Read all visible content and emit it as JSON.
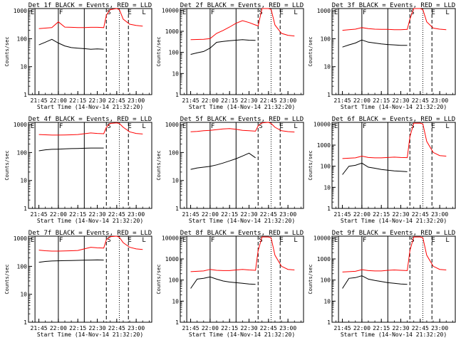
{
  "figure": {
    "x_tick_labels": [
      "21:45",
      "22:00",
      "22:15",
      "22:30",
      "22:45",
      "23:00"
    ],
    "xlabel": "Start Time (14-Nov-14 21:32:20)",
    "ylabel": "Counts/sec",
    "y_tick_labels": [
      "1",
      "10",
      "100",
      "1000",
      "10000"
    ],
    "marker_labels": [
      "E",
      "F",
      "S",
      "E",
      "L"
    ],
    "colors": {
      "events": "#000000",
      "lld": "#ff0000",
      "axes": "#000000",
      "background": "#ffffff"
    }
  },
  "chart_data": [
    {
      "type": "line",
      "title": "Det 1f BLACK = Events, RED = LLD",
      "xlabel": "Start Time (14-Nov-14 21:32:20)",
      "ylabel": "Counts/sec",
      "y_scale": "log",
      "ylim": [
        1,
        1200
      ],
      "x": [
        "21:45",
        "21:50",
        "21:55",
        "22:00",
        "22:05",
        "22:10",
        "22:15",
        "22:20",
        "22:25",
        "22:30",
        "22:35",
        "22:37",
        "22:40",
        "22:45",
        "22:47",
        "22:50",
        "22:55",
        "23:00",
        "23:05"
      ],
      "series": [
        {
          "name": "BLACK = Events",
          "color": "#000000",
          "values": [
            60,
            75,
            95,
            70,
            55,
            48,
            46,
            44,
            42,
            43,
            42,
            null,
            null,
            null,
            null,
            null,
            null,
            null,
            null
          ]
        },
        {
          "name": "RED = LLD",
          "color": "#ff0000",
          "values": [
            230,
            240,
            250,
            400,
            260,
            255,
            250,
            250,
            255,
            255,
            250,
            700,
            1100,
            1200,
            1100,
            500,
            330,
            300,
            280
          ]
        }
      ]
    },
    {
      "type": "line",
      "title": "Det 2f BLACK = Events, RED = LLD",
      "xlabel": "Start Time (14-Nov-14 21:32:20)",
      "ylabel": "Counts/sec",
      "y_scale": "log",
      "ylim": [
        1,
        12000
      ],
      "x": [
        "21:45",
        "21:50",
        "21:55",
        "22:00",
        "22:05",
        "22:10",
        "22:15",
        "22:20",
        "22:25",
        "22:30",
        "22:35",
        "22:37",
        "22:40",
        "22:45",
        "22:47",
        "22:50",
        "22:55",
        "23:00",
        "23:05"
      ],
      "series": [
        {
          "name": "BLACK = Events",
          "color": "#000000",
          "values": [
            80,
            95,
            110,
            160,
            300,
            330,
            360,
            380,
            400,
            380,
            370,
            null,
            null,
            null,
            null,
            null,
            null,
            null,
            null
          ]
        },
        {
          "name": "RED = LLD",
          "color": "#ff0000",
          "values": [
            400,
            410,
            420,
            450,
            800,
            1100,
            1600,
            2400,
            3200,
            2600,
            2000,
            1800,
            12000,
            12000,
            11000,
            2000,
            800,
            650,
            600
          ]
        }
      ]
    },
    {
      "type": "line",
      "title": "Det 3f BLACK = Events, RED = LLD",
      "xlabel": "Start Time (14-Nov-14 21:32:20)",
      "ylabel": "Counts/sec",
      "y_scale": "log",
      "ylim": [
        1,
        1200
      ],
      "x": [
        "21:45",
        "21:50",
        "21:55",
        "22:00",
        "22:05",
        "22:10",
        "22:15",
        "22:20",
        "22:25",
        "22:30",
        "22:35",
        "22:37",
        "22:40",
        "22:45",
        "22:47",
        "22:50",
        "22:55",
        "23:00",
        "23:05"
      ],
      "series": [
        {
          "name": "BLACK = Events",
          "color": "#000000",
          "values": [
            50,
            60,
            70,
            90,
            75,
            70,
            65,
            62,
            60,
            58,
            58,
            null,
            null,
            null,
            null,
            null,
            null,
            null,
            null
          ]
        },
        {
          "name": "RED = LLD",
          "color": "#ff0000",
          "values": [
            200,
            210,
            220,
            250,
            230,
            220,
            215,
            215,
            210,
            210,
            215,
            500,
            1200,
            1200,
            1100,
            400,
            240,
            220,
            210
          ]
        }
      ]
    },
    {
      "type": "line",
      "title": "Det 4f BLACK = Events, RED = LLD",
      "xlabel": "Start Time (14-Nov-14 21:32:20)",
      "ylabel": "Counts/sec",
      "y_scale": "log",
      "ylim": [
        1,
        1200
      ],
      "x": [
        "21:45",
        "21:50",
        "21:55",
        "22:00",
        "22:05",
        "22:10",
        "22:15",
        "22:20",
        "22:25",
        "22:30",
        "22:35",
        "22:37",
        "22:40",
        "22:45",
        "22:47",
        "22:50",
        "22:55",
        "23:00",
        "23:05"
      ],
      "series": [
        {
          "name": "BLACK = Events",
          "color": "#000000",
          "values": [
            115,
            125,
            130,
            132,
            135,
            138,
            140,
            142,
            145,
            145,
            145,
            null,
            null,
            null,
            null,
            null,
            null,
            null,
            null
          ]
        },
        {
          "name": "RED = LLD",
          "color": "#ff0000",
          "values": [
            440,
            430,
            420,
            420,
            425,
            430,
            440,
            470,
            500,
            480,
            470,
            800,
            1100,
            1150,
            1100,
            800,
            550,
            480,
            460
          ]
        }
      ]
    },
    {
      "type": "line",
      "title": "Det 5f BLACK = Events, RED = LLD",
      "xlabel": "Start Time (14-Nov-14 21:32:20)",
      "ylabel": "Counts/sec",
      "y_scale": "log",
      "ylim": [
        1,
        1200
      ],
      "x": [
        "21:45",
        "21:50",
        "21:55",
        "22:00",
        "22:05",
        "22:10",
        "22:15",
        "22:20",
        "22:25",
        "22:30",
        "22:35",
        "22:37",
        "22:40",
        "22:45",
        "22:47",
        "22:50",
        "22:55",
        "23:00",
        "23:05"
      ],
      "series": [
        {
          "name": "BLACK = Events",
          "color": "#000000",
          "values": [
            25,
            28,
            30,
            32,
            36,
            42,
            50,
            60,
            75,
            95,
            65,
            null,
            null,
            null,
            null,
            null,
            null,
            null,
            null
          ]
        },
        {
          "name": "RED = LLD",
          "color": "#ff0000",
          "values": [
            550,
            570,
            600,
            620,
            660,
            700,
            720,
            680,
            620,
            600,
            580,
            900,
            1150,
            1200,
            1100,
            800,
            600,
            560,
            540
          ]
        }
      ]
    },
    {
      "type": "line",
      "title": "Det 6f BLACK = Events, RED = LLD",
      "xlabel": "Start Time (14-Nov-14 21:32:20)",
      "ylabel": "Counts/sec",
      "y_scale": "log",
      "ylim": [
        1,
        12000
      ],
      "x": [
        "21:45",
        "21:50",
        "21:55",
        "22:00",
        "22:05",
        "22:10",
        "22:15",
        "22:20",
        "22:25",
        "22:30",
        "22:35",
        "22:37",
        "22:40",
        "22:45",
        "22:47",
        "22:50",
        "22:55",
        "23:00",
        "23:05"
      ],
      "series": [
        {
          "name": "BLACK = Events",
          "color": "#000000",
          "values": [
            40,
            100,
            110,
            140,
            90,
            80,
            70,
            65,
            60,
            58,
            55,
            null,
            null,
            null,
            null,
            null,
            null,
            null,
            null
          ]
        },
        {
          "name": "RED = LLD",
          "color": "#ff0000",
          "values": [
            230,
            240,
            250,
            300,
            260,
            250,
            250,
            260,
            270,
            260,
            255,
            2500,
            11000,
            11000,
            10000,
            1500,
            450,
            320,
            300
          ]
        }
      ]
    },
    {
      "type": "line",
      "title": "Det 7f BLACK = Events, RED = LLD",
      "xlabel": "Start Time (14-Nov-14 21:32:20)",
      "ylabel": "Counts/sec",
      "y_scale": "log",
      "ylim": [
        1,
        1200
      ],
      "x": [
        "21:45",
        "21:50",
        "21:55",
        "22:00",
        "22:05",
        "22:10",
        "22:15",
        "22:20",
        "22:25",
        "22:30",
        "22:35",
        "22:37",
        "22:40",
        "22:45",
        "22:47",
        "22:50",
        "22:55",
        "23:00",
        "23:05"
      ],
      "series": [
        {
          "name": "BLACK = Events",
          "color": "#000000",
          "values": [
            140,
            150,
            155,
            158,
            160,
            162,
            164,
            166,
            168,
            170,
            168,
            null,
            null,
            null,
            null,
            null,
            null,
            null,
            null
          ]
        },
        {
          "name": "RED = LLD",
          "color": "#ff0000",
          "values": [
            380,
            360,
            350,
            350,
            355,
            360,
            370,
            420,
            480,
            460,
            450,
            900,
            1150,
            1200,
            1100,
            700,
            480,
            420,
            400
          ]
        }
      ]
    },
    {
      "type": "line",
      "title": "Det 8f BLACK = Events, RED = LLD",
      "xlabel": "Start Time (14-Nov-14 21:32:20)",
      "ylabel": "Counts/sec",
      "y_scale": "log",
      "ylim": [
        1,
        12000
      ],
      "x": [
        "21:45",
        "21:50",
        "21:55",
        "22:00",
        "22:05",
        "22:10",
        "22:15",
        "22:20",
        "22:25",
        "22:30",
        "22:35",
        "22:37",
        "22:40",
        "22:45",
        "22:47",
        "22:50",
        "22:55",
        "23:00",
        "23:05"
      ],
      "series": [
        {
          "name": "BLACK = Events",
          "color": "#000000",
          "values": [
            40,
            110,
            120,
            140,
            110,
            90,
            80,
            75,
            70,
            65,
            62,
            null,
            null,
            null,
            null,
            null,
            null,
            null,
            null
          ]
        },
        {
          "name": "RED = LLD",
          "color": "#ff0000",
          "values": [
            250,
            260,
            270,
            320,
            290,
            280,
            280,
            300,
            320,
            300,
            290,
            2500,
            11000,
            11000,
            10000,
            1500,
            450,
            320,
            300
          ]
        }
      ]
    },
    {
      "type": "line",
      "title": "Det 9f BLACK = Events, RED = LLD",
      "xlabel": "Start Time (14-Nov-14 21:32:20)",
      "ylabel": "Counts/sec",
      "y_scale": "log",
      "ylim": [
        1,
        12000
      ],
      "x": [
        "21:45",
        "21:50",
        "21:55",
        "22:00",
        "22:05",
        "22:10",
        "22:15",
        "22:20",
        "22:25",
        "22:30",
        "22:35",
        "22:37",
        "22:40",
        "22:45",
        "22:47",
        "22:50",
        "22:55",
        "23:00",
        "23:05"
      ],
      "series": [
        {
          "name": "BLACK = Events",
          "color": "#000000",
          "values": [
            40,
            120,
            130,
            160,
            110,
            95,
            85,
            75,
            70,
            65,
            62,
            null,
            null,
            null,
            null,
            null,
            null,
            null,
            null
          ]
        },
        {
          "name": "RED = LLD",
          "color": "#ff0000",
          "values": [
            240,
            250,
            260,
            310,
            280,
            270,
            270,
            290,
            300,
            290,
            280,
            2500,
            11000,
            11000,
            10000,
            1500,
            450,
            320,
            300
          ]
        }
      ]
    }
  ]
}
